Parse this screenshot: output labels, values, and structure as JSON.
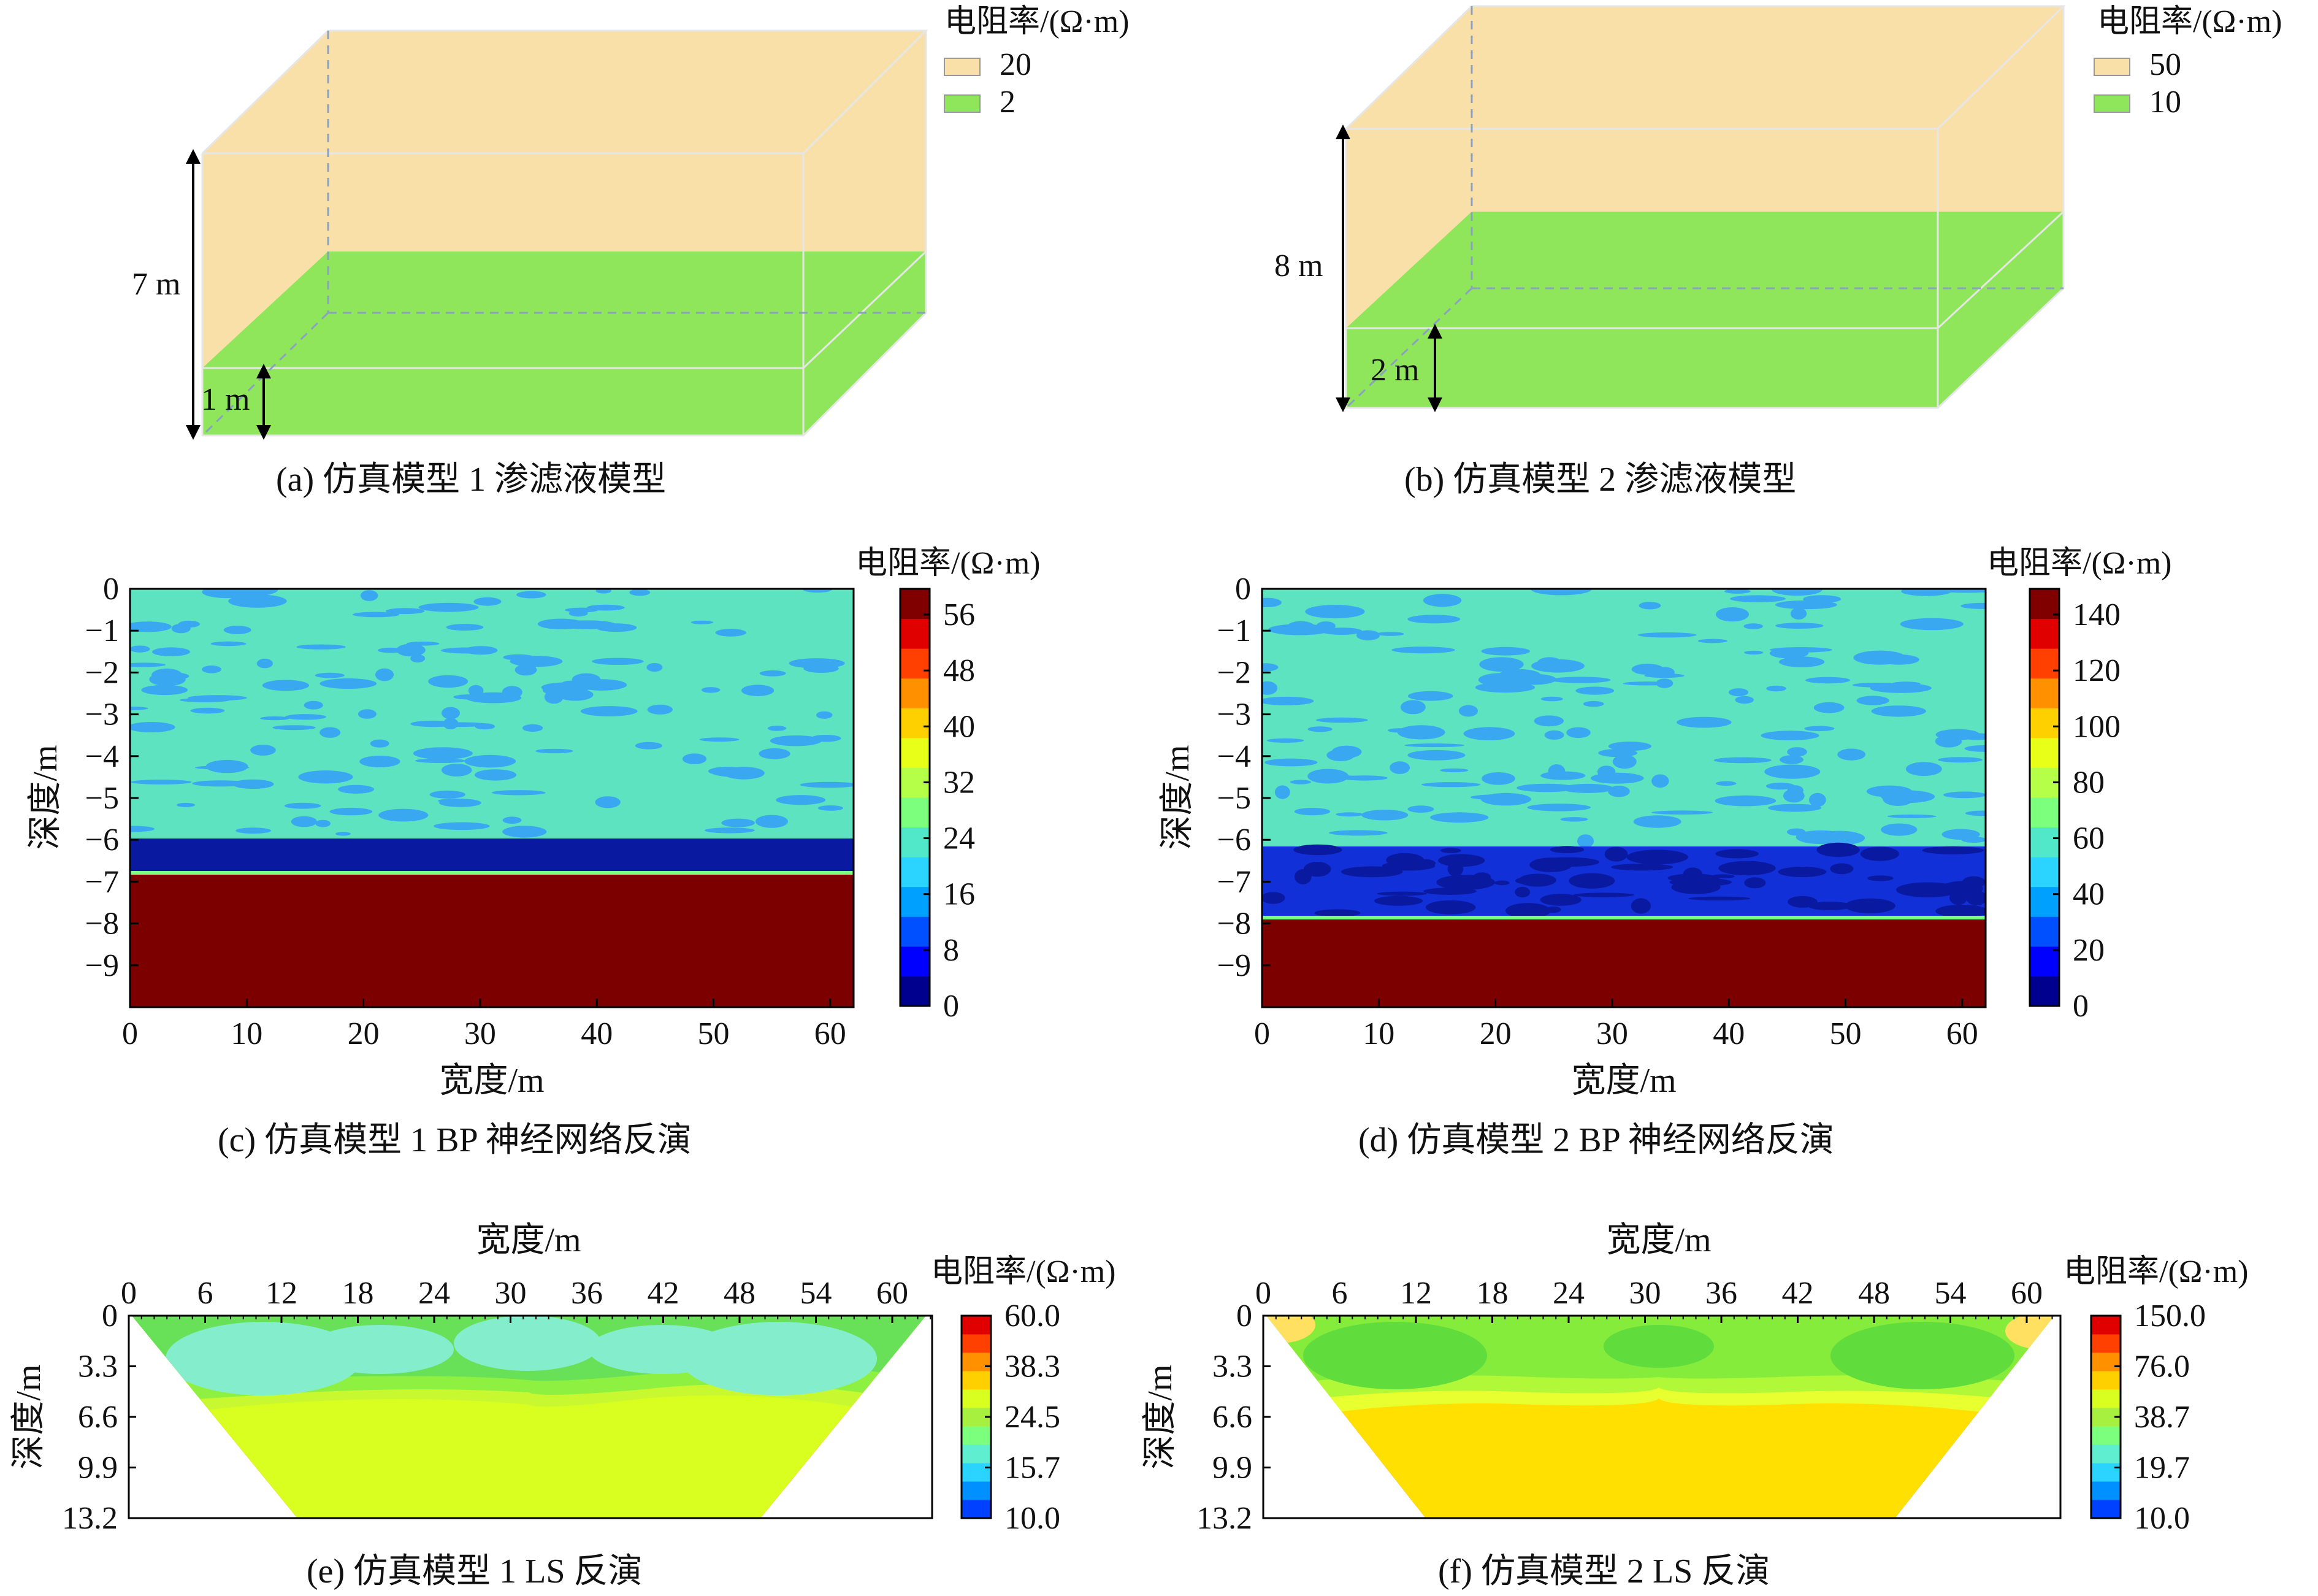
{
  "panels": {
    "a": {
      "caption": "(a) 仿真模型 1 渗滤液模型",
      "legend_title": "电阻率/(Ω·m)",
      "legend": [
        {
          "label": "20",
          "color": "#f9e0a8"
        },
        {
          "label": "2",
          "color": "#8fe65a"
        }
      ],
      "dims": {
        "total": "7 m",
        "layer": "1 m"
      }
    },
    "b": {
      "caption": "(b) 仿真模型 2 渗滤液模型",
      "legend_title": "电阻率/(Ω·m)",
      "legend": [
        {
          "label": "50",
          "color": "#f9e0a8"
        },
        {
          "label": "10",
          "color": "#8fe65a"
        }
      ],
      "dims": {
        "total": "8 m",
        "layer": "2 m"
      }
    },
    "c": {
      "caption": "(c) 仿真模型 1 BP 神经网络反演",
      "ylabel": "深度/m",
      "xlabel": "宽度/m",
      "cb_title": "电阻率/(Ω·m)",
      "yticks": [
        "0",
        "−1",
        "−2",
        "−3",
        "−4",
        "−5",
        "−6",
        "−7",
        "−8",
        "−9"
      ],
      "xticks": [
        "0",
        "10",
        "20",
        "30",
        "40",
        "50",
        "60"
      ],
      "cbticks": [
        "56",
        "48",
        "40",
        "32",
        "24",
        "16",
        "8",
        "0"
      ]
    },
    "d": {
      "caption": "(d) 仿真模型 2 BP 神经网络反演",
      "ylabel": "深度/m",
      "xlabel": "宽度/m",
      "cb_title": "电阻率/(Ω·m)",
      "yticks": [
        "0",
        "−1",
        "−2",
        "−3",
        "−4",
        "−5",
        "−6",
        "−7",
        "−8",
        "−9"
      ],
      "xticks": [
        "0",
        "10",
        "20",
        "30",
        "40",
        "50",
        "60"
      ],
      "cbticks": [
        "140",
        "120",
        "100",
        "80",
        "60",
        "40",
        "20",
        "0"
      ]
    },
    "e": {
      "caption": "(e) 仿真模型 1 LS 反演",
      "ylabel": "深度/m",
      "xlabel": "宽度/m",
      "cb_title": "电阻率/(Ω·m)",
      "yticks": [
        "0",
        "3.3",
        "6.6",
        "9.9",
        "13.2"
      ],
      "xticks": [
        "0",
        "6",
        "12",
        "18",
        "24",
        "30",
        "36",
        "42",
        "48",
        "54",
        "60"
      ],
      "cbticks": [
        "60.0",
        "38.3",
        "24.5",
        "15.7",
        "10.0"
      ]
    },
    "f": {
      "caption": "(f) 仿真模型 2 LS 反演",
      "ylabel": "深度/m",
      "xlabel": "宽度/m",
      "cb_title": "电阻率/(Ω·m)",
      "yticks": [
        "0",
        "3.3",
        "6.6",
        "9.9",
        "13.2"
      ],
      "xticks": [
        "0",
        "6",
        "12",
        "18",
        "24",
        "30",
        "36",
        "42",
        "48",
        "54",
        "60"
      ],
      "cbticks": [
        "150.0",
        "76.0",
        "38.7",
        "19.7",
        "10.0"
      ]
    }
  },
  "colors": {
    "jet": [
      "#00008f",
      "#0000ff",
      "#0050ff",
      "#00a0ff",
      "#2ad4ff",
      "#50e8c8",
      "#7cff7c",
      "#b6ff48",
      "#e8ff18",
      "#ffd000",
      "#ff9000",
      "#ff4000",
      "#e00000",
      "#800000"
    ],
    "upper_box": "#f9e0a8",
    "lower_box": "#8fe65a",
    "bp_background": "#5de3c0",
    "bp_blob": "#3aa8f0",
    "bp_low_c": "#0a1aa0",
    "bp_low_d": "#1230d8",
    "bp_high": "#7d0000"
  }
}
